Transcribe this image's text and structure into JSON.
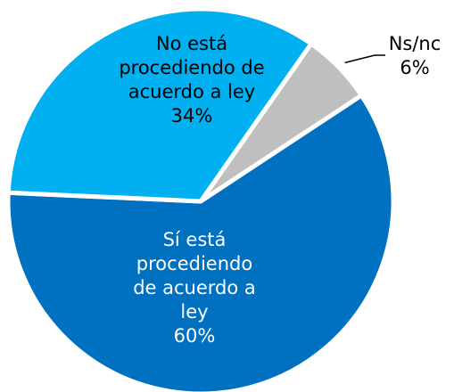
{
  "chart_data": {
    "type": "pie",
    "categories": [
      "Ns/nc",
      "Sí está procediendo de acuerdo a ley",
      "No está procediendo de acuerdo a ley"
    ],
    "values": [
      6,
      60,
      34
    ],
    "value_labels": [
      "6%",
      "60%",
      "34%"
    ],
    "colors": [
      "#bfbfbf",
      "#0070c0",
      "#00b0f0"
    ]
  }
}
